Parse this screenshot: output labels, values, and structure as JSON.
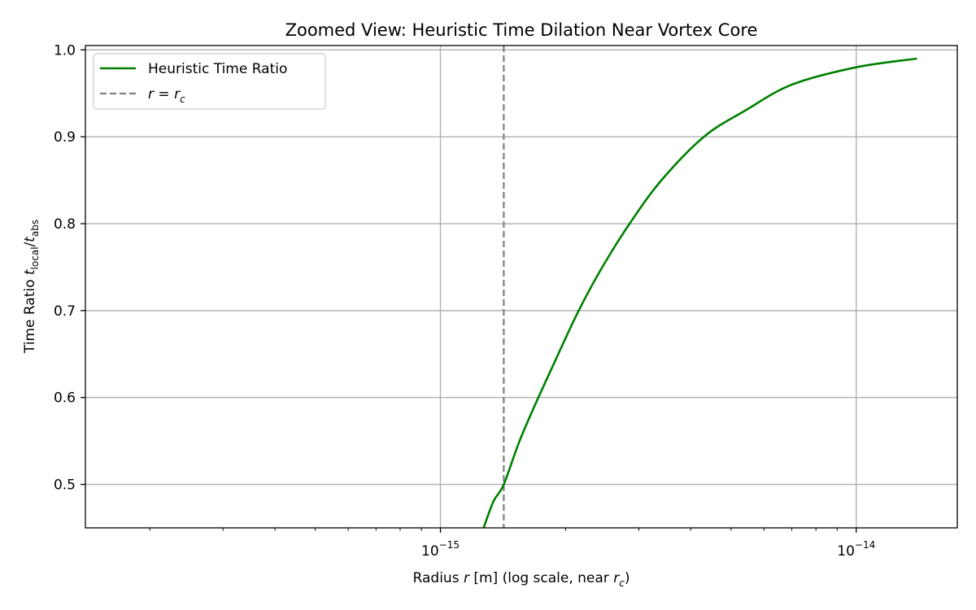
{
  "chart_data": {
    "type": "line",
    "title": "Zoomed View: Heuristic Time Dilation Near Vortex Core",
    "xlabel": {
      "prefix": "Radius ",
      "var": "r",
      "middle": " [m] (log scale, near ",
      "sub_var": "r",
      "sub": "c",
      "suffix": ")"
    },
    "ylabel": {
      "prefix": "Time Ratio ",
      "num_var": "t",
      "num_sub": "local",
      "slash": "/",
      "den_var": "t",
      "den_sub": "abs"
    },
    "x_scale": "log",
    "xlim": [
      1.4e-16,
      1.75e-14
    ],
    "ylim": [
      0.45,
      1.005
    ],
    "x_ticks": [
      {
        "value": 1e-15,
        "base": "10",
        "exp": "−15"
      },
      {
        "value": 1e-14,
        "base": "10",
        "exp": "−14"
      }
    ],
    "y_ticks": [
      {
        "value": 0.5,
        "label": "0.5"
      },
      {
        "value": 0.6,
        "label": "0.6"
      },
      {
        "value": 0.7,
        "label": "0.7"
      },
      {
        "value": 0.8,
        "label": "0.8"
      },
      {
        "value": 0.9,
        "label": "0.9"
      },
      {
        "value": 1.0,
        "label": "1.0"
      }
    ],
    "grid": true,
    "legend_position": "top-left",
    "series": [
      {
        "name": "Heuristic Time Ratio",
        "color": "#008000",
        "style": "solid",
        "points": [
          [
            1.27e-15,
            0.45
          ],
          [
            1.34e-15,
            0.48
          ],
          [
            1.42e-15,
            0.5
          ],
          [
            1.55e-15,
            0.55
          ],
          [
            1.72e-15,
            0.6
          ],
          [
            1.92e-15,
            0.65
          ],
          [
            2.15e-15,
            0.7
          ],
          [
            2.45e-15,
            0.75
          ],
          [
            2.85e-15,
            0.8
          ],
          [
            3.4e-15,
            0.85
          ],
          [
            4.3e-15,
            0.9
          ],
          [
            5.4e-15,
            0.93
          ],
          [
            7e-15,
            0.96
          ],
          [
            1e-14,
            0.98
          ],
          [
            1.4e-14,
            0.99
          ]
        ]
      }
    ],
    "vline": {
      "x": 1.42e-15,
      "color": "#808080",
      "style": "dashed",
      "legend": {
        "var": "r",
        "eq": " = ",
        "sub_var": "r",
        "sub": "c"
      }
    }
  }
}
